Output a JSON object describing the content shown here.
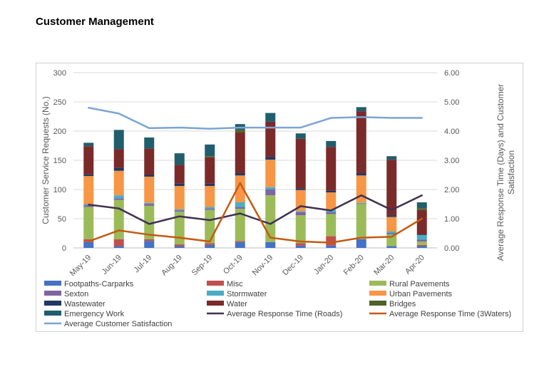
{
  "page": {
    "title": "Customer Management"
  },
  "chart_data": {
    "type": "bar",
    "stacked": true,
    "categories": [
      "May-19",
      "Jun-19",
      "Jul-19",
      "Aug-19",
      "Sep-19",
      "Oct-19",
      "Nov-19",
      "Dec-19",
      "Jan-20",
      "Feb-20",
      "Mar-20",
      "Apr-20"
    ],
    "ylabel": "Customer Service Requests (No.)",
    "y2label": "Average Response Time (Days) and Customer Satisfaction",
    "ylim": [
      0,
      300
    ],
    "y2lim": [
      0,
      6
    ],
    "yticks": [
      "0",
      "50",
      "100",
      "150",
      "200",
      "250",
      "300"
    ],
    "y2ticks": [
      "0.00",
      "1.00",
      "2.00",
      "3.00",
      "4.00",
      "5.00",
      "6.00"
    ],
    "grid": true,
    "legend_position": "bottom",
    "series": [
      {
        "name": "Footpaths-Carparks",
        "color": "#4472c4",
        "values": [
          10,
          3,
          12,
          3,
          5,
          10,
          10,
          4,
          4,
          15,
          3,
          3
        ]
      },
      {
        "name": "Misc",
        "color": "#c0504d",
        "values": [
          5,
          12,
          3,
          3,
          3,
          2,
          0,
          4,
          16,
          0,
          0,
          2
        ]
      },
      {
        "name": "Rural Pavements",
        "color": "#9bbb59",
        "values": [
          55,
          67,
          57,
          56,
          57,
          55,
          80,
          48,
          38,
          60,
          20,
          6
        ]
      },
      {
        "name": "Sexton",
        "color": "#8064a2",
        "values": [
          3,
          3,
          3,
          2,
          2,
          3,
          10,
          5,
          3,
          0,
          2,
          3
        ]
      },
      {
        "name": "Stormwater",
        "color": "#4bacc6",
        "values": [
          2,
          5,
          2,
          2,
          3,
          8,
          4,
          2,
          4,
          2,
          3,
          8
        ]
      },
      {
        "name": "Urban Pavements",
        "color": "#f79646",
        "values": [
          48,
          42,
          45,
          40,
          36,
          46,
          47,
          36,
          30,
          47,
          25,
          0
        ]
      },
      {
        "name": "Wastewater",
        "color": "#1f3864",
        "values": [
          3,
          5,
          3,
          4,
          4,
          4,
          5,
          3,
          3,
          4,
          3,
          1
        ]
      },
      {
        "name": "Water",
        "color": "#7b2a2a",
        "values": [
          48,
          32,
          45,
          32,
          45,
          70,
          60,
          85,
          75,
          106,
          95,
          42
        ]
      },
      {
        "name": "Bridges",
        "color": "#4f6228",
        "values": [
          0,
          0,
          0,
          0,
          2,
          4,
          0,
          0,
          0,
          0,
          0,
          3
        ]
      },
      {
        "name": "Emergency Work",
        "color": "#215e6b",
        "values": [
          6,
          33,
          19,
          20,
          20,
          10,
          15,
          9,
          10,
          7,
          6,
          10
        ]
      }
    ],
    "lines": [
      {
        "name": "Average Response Time (Roads)",
        "color": "#403152",
        "axis": "secondary",
        "values": [
          1.48,
          1.35,
          0.82,
          1.08,
          0.95,
          1.18,
          0.82,
          1.43,
          1.28,
          1.8,
          1.3,
          1.8
        ]
      },
      {
        "name": "Average Response Time (3Waters)",
        "color": "#c55a11",
        "axis": "secondary",
        "values": [
          0.22,
          0.6,
          0.45,
          0.35,
          0.22,
          2.22,
          0.35,
          0.22,
          0.18,
          0.35,
          0.38,
          1.0
        ]
      },
      {
        "name": "Average Customer Satisfaction",
        "color": "#7ba4d4",
        "axis": "secondary",
        "values": [
          4.8,
          4.6,
          4.1,
          4.12,
          4.08,
          4.12,
          4.12,
          4.12,
          4.45,
          4.48,
          4.45,
          4.45
        ]
      }
    ]
  }
}
